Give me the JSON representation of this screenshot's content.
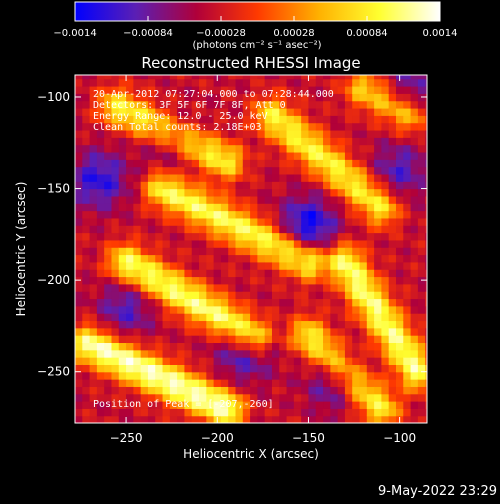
{
  "chart_data": {
    "type": "heatmap",
    "title": "Reconstructed RHESSI Image",
    "xlabel": "Heliocentric X (arcsec)",
    "ylabel": "Heliocentric Y (arcsec)",
    "xlim": [
      -278,
      -85
    ],
    "ylim": [
      -278,
      -88
    ],
    "x_ticks": [
      -250,
      -200,
      -150,
      -100
    ],
    "x_tick_labels": [
      "−250",
      "−200",
      "−150",
      "−100"
    ],
    "y_ticks": [
      -250,
      -200,
      -150,
      -100
    ],
    "y_tick_labels": [
      "−250",
      "−200",
      "−150",
      "−100"
    ],
    "colorbar": {
      "range": [
        -0.0014,
        0.0014
      ],
      "ticks": [
        -0.0014,
        -0.00084,
        -0.00028,
        0.00028,
        0.00084,
        0.0014
      ],
      "tick_labels": [
        "−0.0014",
        "−0.00084",
        "−0.00028",
        "0.00028",
        "0.00084",
        "0.0014"
      ],
      "unit_label": "(photons cm⁻² s⁻¹ asec⁻²)",
      "colors": [
        "#0000ff",
        "#5b1fb4",
        "#b0003a",
        "#ff3a00",
        "#ffb000",
        "#ffff30",
        "#ffffff"
      ]
    },
    "annotations": {
      "time_range": "20-Apr-2012 07:27:04.000 to 07:28:44.000",
      "detectors": "Detectors: 3F 5F 6F 7F 8F, Att 0",
      "energy_range": "Energy Range: 12.0 - 25.0 keV",
      "clean": "Clean   Total counts: 2.18E+03",
      "peak": "Position of Peak = [-207,-260]"
    },
    "peak": {
      "x": -207,
      "y": -260
    },
    "image_description_note": "",
    "ridges": [
      {
        "start": [
          -270,
          -235
        ],
        "end": [
          -195,
          -270
        ],
        "value": 0.0013
      },
      {
        "start": [
          -250,
          -190
        ],
        "end": [
          -180,
          -230
        ],
        "value": 0.0011
      },
      {
        "start": [
          -255,
          -105
        ],
        "end": [
          -195,
          -135
        ],
        "value": 0.0009
      },
      {
        "start": [
          -230,
          -150
        ],
        "end": [
          -150,
          -190
        ],
        "value": 0.001
      },
      {
        "start": [
          -170,
          -110
        ],
        "end": [
          -110,
          -160
        ],
        "value": 0.0009
      },
      {
        "start": [
          -130,
          -190
        ],
        "end": [
          -90,
          -250
        ],
        "value": 0.0011
      },
      {
        "start": [
          -150,
          -230
        ],
        "end": [
          -110,
          -270
        ],
        "value": 0.0009
      },
      {
        "start": [
          -120,
          -95
        ],
        "end": [
          -95,
          -110
        ],
        "value": 0.0007
      }
    ],
    "troughs": [
      {
        "center": [
          -265,
          -145
        ],
        "value": -0.0012
      },
      {
        "center": [
          -150,
          -170
        ],
        "value": -0.0014
      },
      {
        "center": [
          -250,
          -215
        ],
        "value": -0.0009
      },
      {
        "center": [
          -185,
          -240
        ],
        "value": -0.001
      },
      {
        "center": [
          -135,
          -255
        ],
        "value": -0.001
      },
      {
        "center": [
          -100,
          -140
        ],
        "value": -0.0009
      },
      {
        "center": [
          -225,
          -125
        ],
        "value": -0.0008
      },
      {
        "center": [
          -95,
          -95
        ],
        "value": -0.0008
      }
    ]
  },
  "footer": {
    "timestamp": "9-May-2022 23:29"
  }
}
